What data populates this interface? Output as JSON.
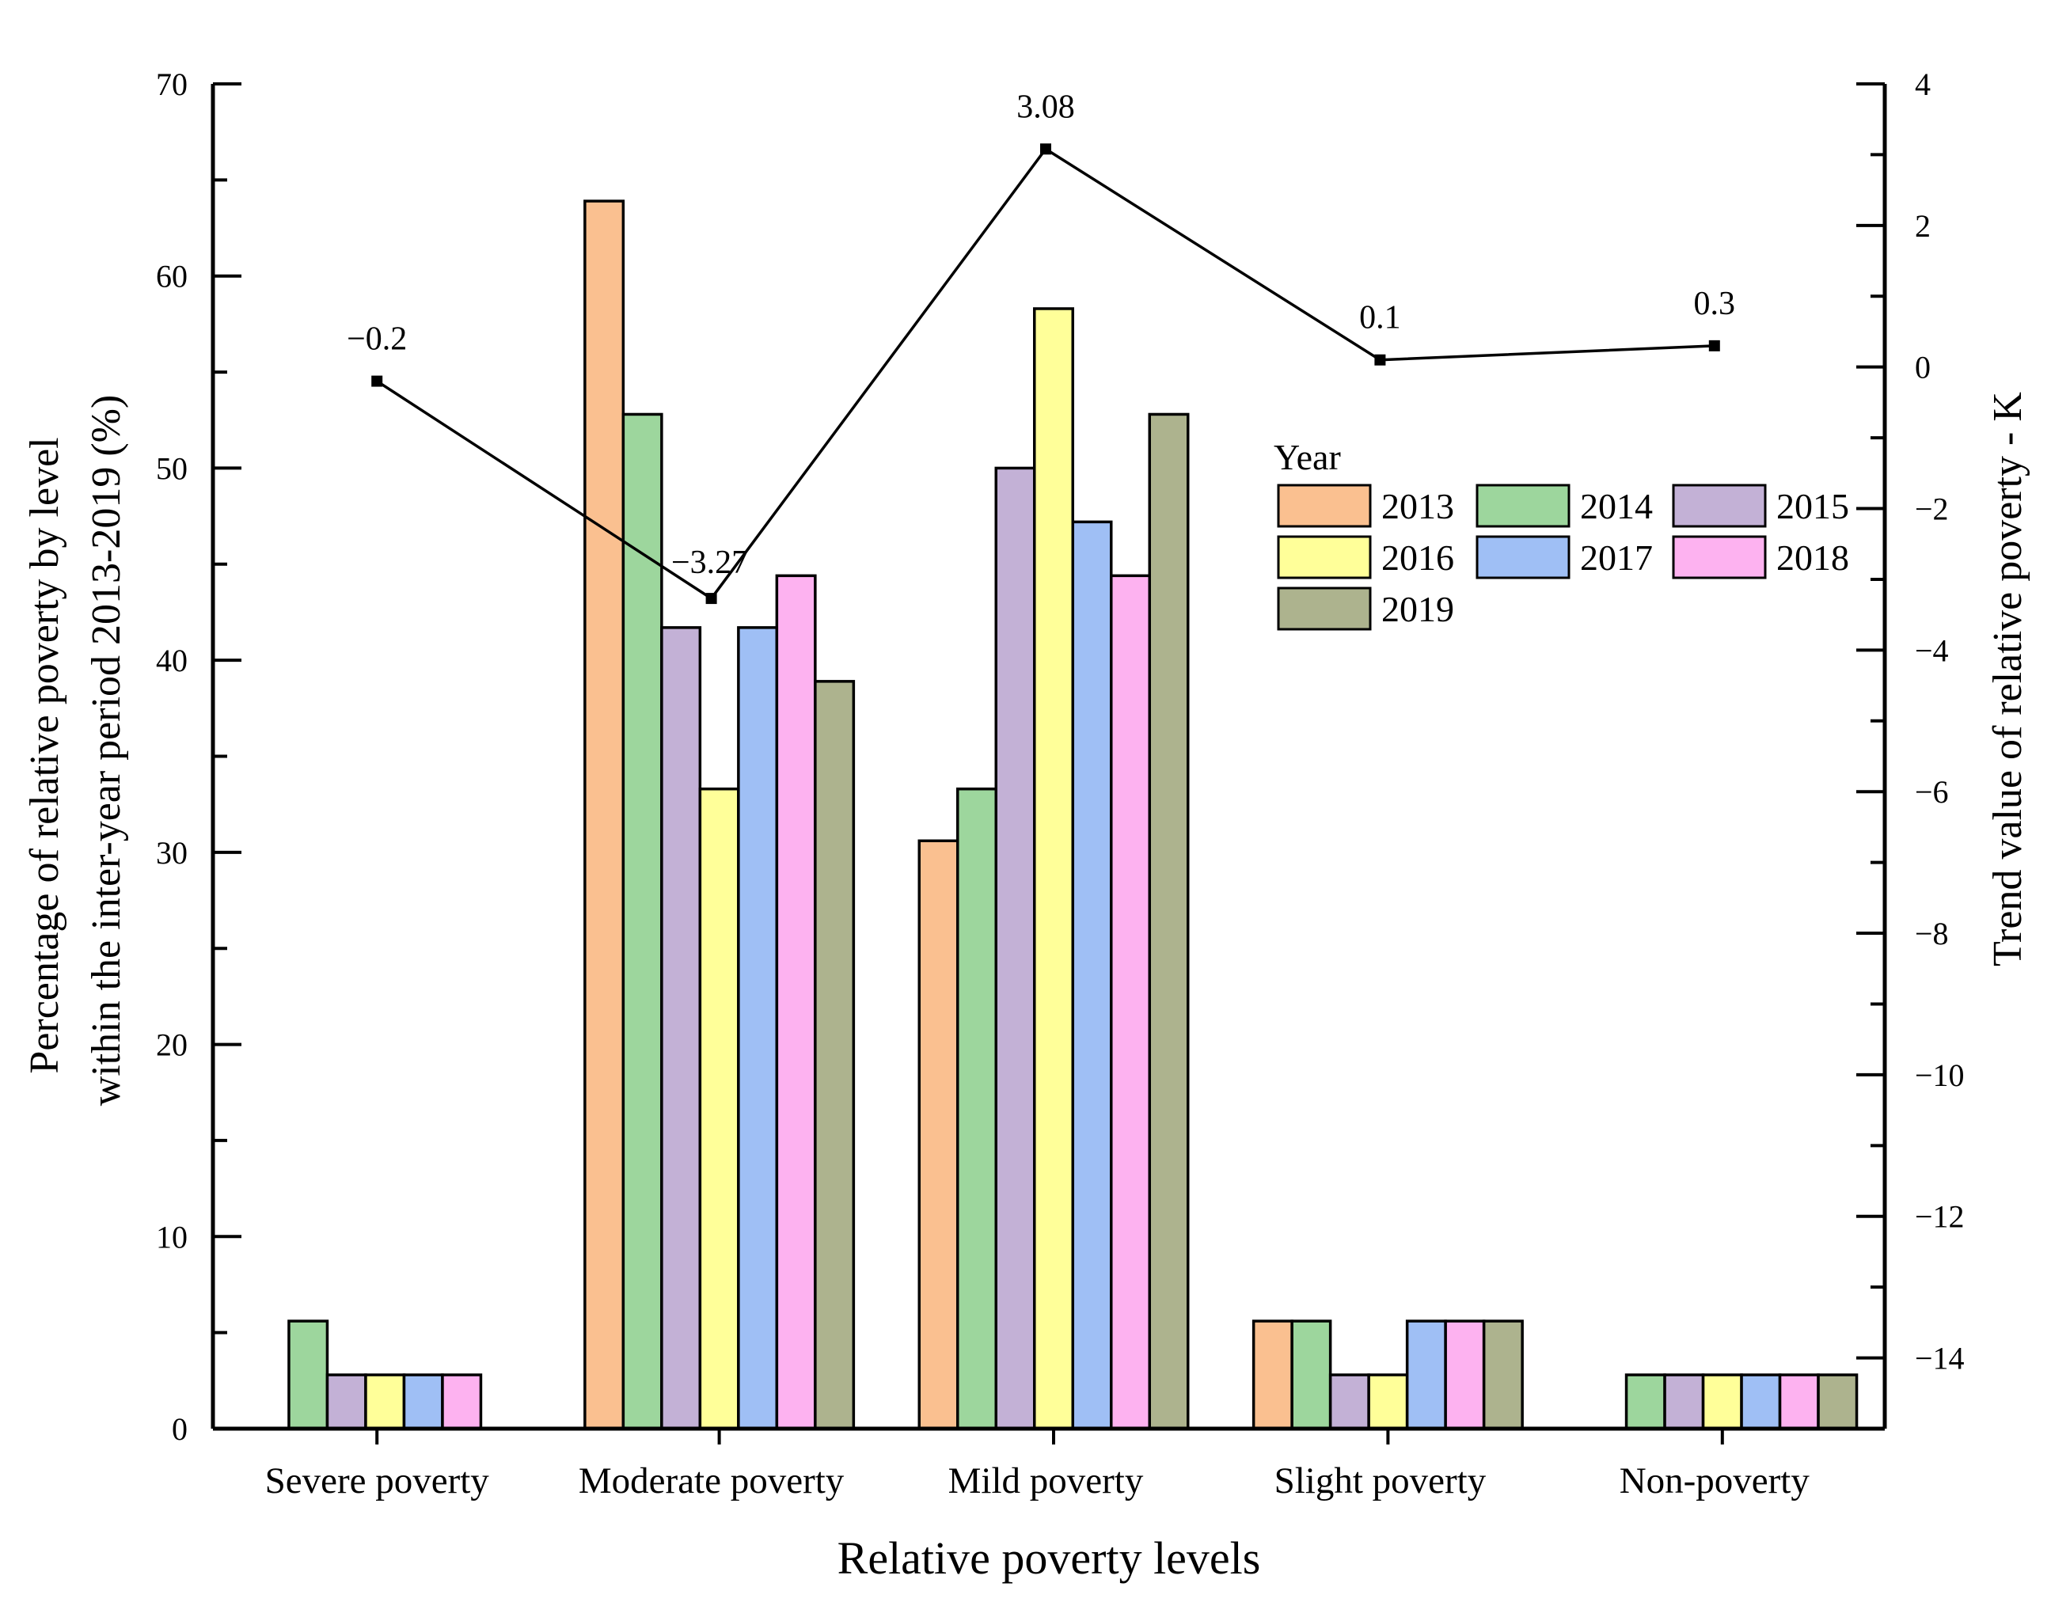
{
  "chart_data": {
    "type": "bar",
    "xlabel": "Relative poverty levels",
    "ylabel_lines": [
      "Percentage of relative poverty by level",
      "within the inter-year period 2013-2019 (%)"
    ],
    "y2label": "Trend value of relative poverty - K",
    "ylim": [
      0,
      70
    ],
    "y2lim": [
      -15,
      4
    ],
    "y_ticks": [
      "0",
      "10",
      "20",
      "30",
      "40",
      "50",
      "60",
      "70"
    ],
    "y2_ticks": [
      "4",
      "2",
      "0",
      "−2",
      "−4",
      "−6",
      "−8",
      "−10",
      "−12",
      "−14"
    ],
    "categories": [
      "Severe poverty",
      "Moderate poverty",
      "Mild poverty",
      "Slight poverty",
      "Non-poverty"
    ],
    "legend_title": "Year",
    "series": [
      {
        "name": "2013",
        "color": "#FAC090",
        "values": [
          0,
          63.9,
          30.6,
          5.6,
          0
        ]
      },
      {
        "name": "2014",
        "color": "#9DD69D",
        "values": [
          5.6,
          52.8,
          33.3,
          5.6,
          2.8
        ]
      },
      {
        "name": "2015",
        "color": "#C3B1D6",
        "values": [
          2.8,
          41.7,
          50.0,
          2.8,
          2.8
        ]
      },
      {
        "name": "2016",
        "color": "#FFFF99",
        "values": [
          2.8,
          33.3,
          58.3,
          2.8,
          2.8
        ]
      },
      {
        "name": "2017",
        "color": "#9FBFF5",
        "values": [
          2.8,
          41.7,
          47.2,
          5.6,
          2.8
        ]
      },
      {
        "name": "2018",
        "color": "#FDB2F0",
        "values": [
          2.8,
          44.4,
          44.4,
          5.6,
          2.8
        ]
      },
      {
        "name": "2019",
        "color": "#ADB38E",
        "values": [
          0,
          38.9,
          52.8,
          5.6,
          2.8
        ]
      }
    ],
    "trend": {
      "name": "Trend value of relative poverty - K",
      "values": [
        -0.2,
        -3.27,
        3.08,
        0.1,
        0.3
      ],
      "labels": [
        "−0.2",
        "−3.27",
        "3.08",
        "0.1",
        "0.3"
      ]
    }
  }
}
